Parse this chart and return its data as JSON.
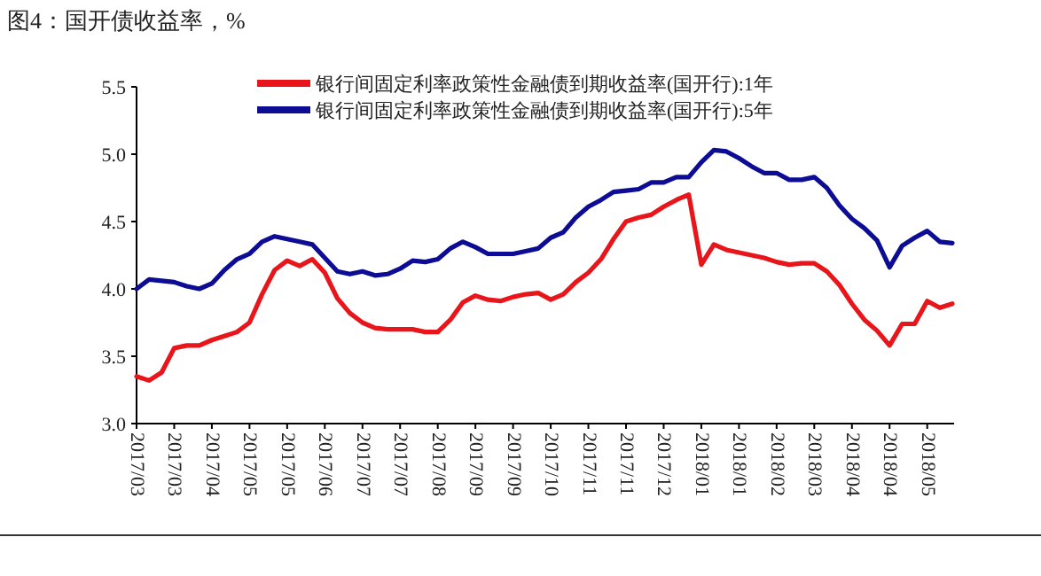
{
  "chart_data": {
    "type": "line",
    "title": "图4：国开债收益率，%",
    "categories": [
      "2017/03",
      null,
      null,
      "2017/03",
      null,
      null,
      "2017/04",
      null,
      null,
      "2017/05",
      null,
      null,
      "2017/05",
      null,
      null,
      "2017/06",
      null,
      null,
      "2017/07",
      null,
      null,
      "2017/07",
      null,
      null,
      "2017/08",
      null,
      null,
      "2017/09",
      null,
      null,
      "2017/09",
      null,
      null,
      "2017/10",
      null,
      null,
      "2017/11",
      null,
      null,
      "2017/11",
      null,
      null,
      "2017/12",
      null,
      null,
      "2018/01",
      null,
      null,
      "2018/01",
      null,
      null,
      "2018/02",
      null,
      null,
      "2018/03",
      null,
      null,
      "2018/04",
      null,
      null,
      "2018/04",
      null,
      null,
      "2018/05",
      null,
      null
    ],
    "series": [
      {
        "name": "银行间固定利率政策性金融债到期收益率(国开行):1年",
        "color": "#e8161b",
        "values": [
          3.35,
          3.32,
          3.38,
          3.56,
          3.58,
          3.58,
          3.62,
          3.65,
          3.68,
          3.75,
          3.96,
          4.14,
          4.21,
          4.17,
          4.22,
          4.12,
          3.93,
          3.82,
          3.75,
          3.71,
          3.7,
          3.7,
          3.7,
          3.68,
          3.68,
          3.77,
          3.9,
          3.95,
          3.92,
          3.91,
          3.94,
          3.96,
          3.97,
          3.92,
          3.96,
          4.05,
          4.12,
          4.22,
          4.37,
          4.5,
          4.53,
          4.55,
          4.61,
          4.66,
          4.7,
          4.18,
          4.33,
          4.29,
          4.27,
          4.25,
          4.23,
          4.2,
          4.18,
          4.19,
          4.19,
          4.13,
          4.03,
          3.89,
          3.77,
          3.69,
          3.58,
          3.74,
          3.74,
          3.91,
          3.86,
          3.89
        ]
      },
      {
        "name": "银行间固定利率政策性金融债到期收益率(国开行):5年",
        "color": "#0c0c94",
        "values": [
          4.0,
          4.07,
          4.06,
          4.05,
          4.02,
          4.0,
          4.04,
          4.14,
          4.22,
          4.26,
          4.35,
          4.39,
          4.37,
          4.35,
          4.33,
          4.23,
          4.13,
          4.11,
          4.13,
          4.1,
          4.11,
          4.15,
          4.21,
          4.2,
          4.22,
          4.3,
          4.35,
          4.31,
          4.26,
          4.26,
          4.26,
          4.28,
          4.3,
          4.38,
          4.42,
          4.53,
          4.61,
          4.66,
          4.72,
          4.73,
          4.74,
          4.79,
          4.79,
          4.83,
          4.83,
          4.94,
          5.03,
          5.02,
          4.97,
          4.91,
          4.86,
          4.86,
          4.81,
          4.81,
          4.83,
          4.75,
          4.62,
          4.52,
          4.45,
          4.36,
          4.16,
          4.32,
          4.38,
          4.43,
          4.35,
          4.34
        ]
      }
    ],
    "ylim": [
      3.0,
      5.5
    ],
    "yticks": [
      {
        "value": 3.0,
        "label": "3.0"
      },
      {
        "value": 3.5,
        "label": "3.5"
      },
      {
        "value": 4.0,
        "label": "4.0"
      },
      {
        "value": 4.5,
        "label": "4.5"
      },
      {
        "value": 5.0,
        "label": "5.0"
      },
      {
        "value": 5.5,
        "label": "5.5"
      }
    ],
    "legend": "top right",
    "grid": false,
    "marker": "none",
    "line_style": "solid"
  }
}
